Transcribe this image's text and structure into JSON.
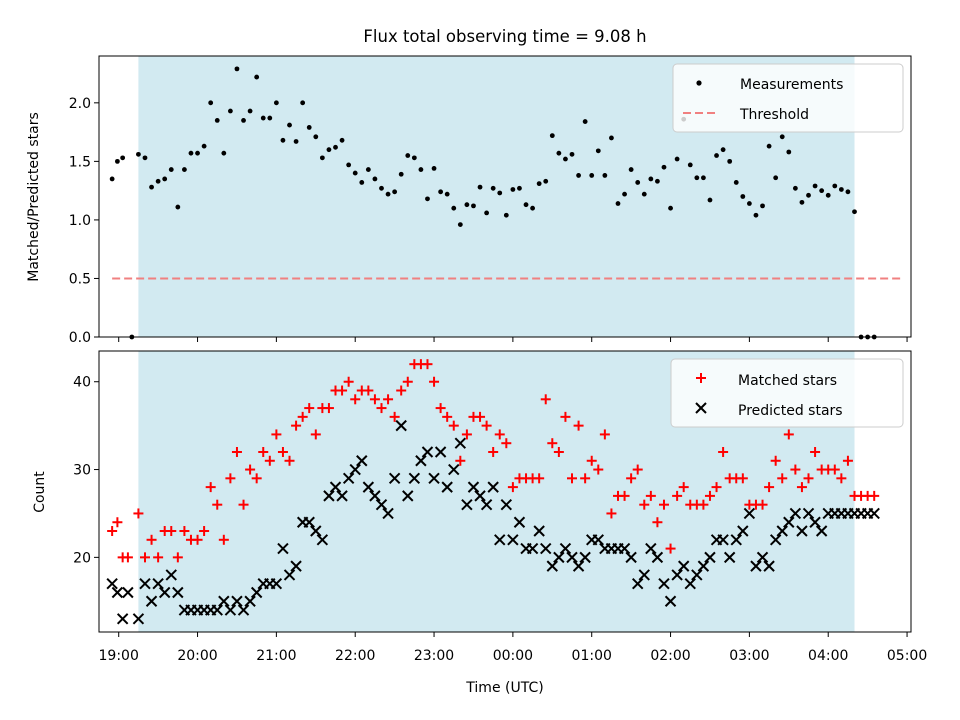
{
  "chart_data": [
    {
      "type": "scatter",
      "title": "Flux total observing time = 9.08 h",
      "xlabel": "",
      "ylabel": "Matched/Predicted stars",
      "xlim": [
        "18:45",
        "05:03"
      ],
      "ylim": [
        0,
        2.4
      ],
      "yticks": [
        0.0,
        0.5,
        1.0,
        1.5,
        2.0
      ],
      "ytick_labels": [
        "0.0",
        "0.5",
        "1.0",
        "1.5",
        "2.0"
      ],
      "shaded_span": [
        "19:15",
        "04:20"
      ],
      "shade_color": "#add8e6",
      "legend": {
        "placement": "upper right",
        "entries": [
          "Measurements",
          "Threshold"
        ]
      },
      "threshold": {
        "name": "Threshold",
        "value": 0.5,
        "x_range": [
          "18:55",
          "04:55"
        ],
        "color": "#f08080",
        "style": "dashed"
      },
      "series": [
        {
          "name": "Measurements",
          "marker": "dot",
          "color": "#000000",
          "x": [
            "18:55",
            "18:59",
            "19:03",
            "19:10",
            "19:15",
            "19:20",
            "19:25",
            "19:30",
            "19:35",
            "19:40",
            "19:45",
            "19:50",
            "19:55",
            "20:00",
            "20:05",
            "20:10",
            "20:15",
            "20:20",
            "20:25",
            "20:30",
            "20:35",
            "20:40",
            "20:45",
            "20:50",
            "20:55",
            "21:00",
            "21:05",
            "21:10",
            "21:15",
            "21:20",
            "21:25",
            "21:30",
            "21:35",
            "21:40",
            "21:45",
            "21:50",
            "21:55",
            "22:00",
            "22:05",
            "22:10",
            "22:15",
            "22:20",
            "22:25",
            "22:30",
            "22:35",
            "22:40",
            "22:45",
            "22:50",
            "22:55",
            "23:00",
            "23:05",
            "23:10",
            "23:15",
            "23:20",
            "23:25",
            "23:30",
            "23:35",
            "23:40",
            "23:45",
            "23:50",
            "23:55",
            "00:00",
            "00:05",
            "00:10",
            "00:15",
            "00:20",
            "00:25",
            "00:30",
            "00:35",
            "00:40",
            "00:45",
            "00:50",
            "00:55",
            "01:00",
            "01:05",
            "01:10",
            "01:15",
            "01:20",
            "01:25",
            "01:30",
            "01:35",
            "01:40",
            "01:45",
            "01:50",
            "01:55",
            "02:00",
            "02:05",
            "02:10",
            "02:15",
            "02:20",
            "02:25",
            "02:30",
            "02:35",
            "02:40",
            "02:45",
            "02:50",
            "02:55",
            "03:00",
            "03:05",
            "03:10",
            "03:15",
            "03:20",
            "03:25",
            "03:30",
            "03:35",
            "03:40",
            "03:45",
            "03:50",
            "03:55",
            "04:00",
            "04:05",
            "04:10",
            "04:15",
            "04:20",
            "04:25",
            "04:30",
            "04:35"
          ],
          "y": [
            1.35,
            1.5,
            1.53,
            0.0,
            1.56,
            1.53,
            1.28,
            1.33,
            1.35,
            1.43,
            1.11,
            1.43,
            1.57,
            1.57,
            1.63,
            2.0,
            1.85,
            1.57,
            1.93,
            2.29,
            1.85,
            1.93,
            2.22,
            1.87,
            1.87,
            2.0,
            1.68,
            1.81,
            1.67,
            2.0,
            1.79,
            1.71,
            1.53,
            1.6,
            1.62,
            1.68,
            1.47,
            1.4,
            1.32,
            1.43,
            1.35,
            1.27,
            1.22,
            1.24,
            1.39,
            1.55,
            1.53,
            1.43,
            1.18,
            1.44,
            1.24,
            1.22,
            1.1,
            0.96,
            1.13,
            1.12,
            1.28,
            1.06,
            1.27,
            1.23,
            1.04,
            1.26,
            1.27,
            1.13,
            1.1,
            1.31,
            1.33,
            1.72,
            1.57,
            1.52,
            1.56,
            1.38,
            1.84,
            1.38,
            1.59,
            1.38,
            1.7,
            1.14,
            1.22,
            1.43,
            1.32,
            1.22,
            1.35,
            1.33,
            1.45,
            1.1,
            1.52,
            1.86,
            1.47,
            1.36,
            1.36,
            1.17,
            1.55,
            1.6,
            1.5,
            1.32,
            1.2,
            1.14,
            1.04,
            1.12,
            1.63,
            1.36,
            1.71,
            1.58,
            1.27,
            1.15,
            1.21,
            1.29,
            1.25,
            1.21,
            1.29,
            1.26,
            1.24,
            1.07,
            0.0,
            0.0,
            0.0
          ]
        }
      ]
    },
    {
      "type": "scatter",
      "title": "",
      "xlabel": "Time (UTC)",
      "ylabel": "Count",
      "xlim": [
        "18:45",
        "05:03"
      ],
      "ylim": [
        11.5,
        43.5
      ],
      "yticks": [
        20,
        30,
        40
      ],
      "ytick_labels": [
        "20",
        "30",
        "40"
      ],
      "xticks": [
        "19:00",
        "20:00",
        "21:00",
        "22:00",
        "23:00",
        "00:00",
        "01:00",
        "02:00",
        "03:00",
        "04:00",
        "05:00"
      ],
      "xtick_labels": [
        "19:00",
        "20:00",
        "21:00",
        "22:00",
        "23:00",
        "00:00",
        "01:00",
        "02:00",
        "03:00",
        "04:00",
        "05:00"
      ],
      "shaded_span": [
        "19:15",
        "04:20"
      ],
      "shade_color": "#add8e6",
      "legend": {
        "placement": "upper right",
        "entries": [
          "Matched stars",
          "Predicted stars"
        ]
      },
      "series": [
        {
          "name": "Matched stars",
          "marker": "plus",
          "color": "#ff0000",
          "x": [
            "18:55",
            "18:59",
            "19:03",
            "19:07",
            "19:15",
            "19:20",
            "19:25",
            "19:30",
            "19:35",
            "19:40",
            "19:45",
            "19:50",
            "19:55",
            "20:00",
            "20:05",
            "20:10",
            "20:15",
            "20:20",
            "20:25",
            "20:30",
            "20:35",
            "20:40",
            "20:45",
            "20:50",
            "20:55",
            "21:00",
            "21:05",
            "21:10",
            "21:15",
            "21:20",
            "21:25",
            "21:30",
            "21:35",
            "21:40",
            "21:45",
            "21:50",
            "21:55",
            "22:00",
            "22:05",
            "22:10",
            "22:15",
            "22:20",
            "22:25",
            "22:30",
            "22:35",
            "22:40",
            "22:45",
            "22:50",
            "22:55",
            "23:00",
            "23:05",
            "23:10",
            "23:15",
            "23:20",
            "23:25",
            "23:30",
            "23:35",
            "23:40",
            "23:45",
            "23:50",
            "23:55",
            "00:00",
            "00:05",
            "00:10",
            "00:15",
            "00:20",
            "00:25",
            "00:30",
            "00:35",
            "00:40",
            "00:45",
            "00:50",
            "00:55",
            "01:00",
            "01:05",
            "01:10",
            "01:15",
            "01:20",
            "01:25",
            "01:30",
            "01:35",
            "01:40",
            "01:45",
            "01:50",
            "01:55",
            "02:00",
            "02:05",
            "02:10",
            "02:15",
            "02:20",
            "02:25",
            "02:30",
            "02:35",
            "02:40",
            "02:45",
            "02:50",
            "02:55",
            "03:00",
            "03:05",
            "03:10",
            "03:15",
            "03:20",
            "03:25",
            "03:30",
            "03:35",
            "03:40",
            "03:45",
            "03:50",
            "03:55",
            "04:00",
            "04:05",
            "04:10",
            "04:15",
            "04:20",
            "04:25",
            "04:30",
            "04:35"
          ],
          "y": [
            23,
            24,
            20,
            20,
            25,
            20,
            22,
            20,
            23,
            23,
            20,
            23,
            22,
            22,
            23,
            28,
            26,
            22,
            29,
            32,
            26,
            30,
            29,
            32,
            31,
            34,
            32,
            31,
            35,
            36,
            37,
            34,
            37,
            37,
            39,
            39,
            40,
            38,
            39,
            39,
            38,
            37,
            38,
            36,
            39,
            40,
            42,
            42,
            42,
            40,
            37,
            36,
            35,
            31,
            34,
            36,
            36,
            35,
            32,
            34,
            33,
            28,
            29,
            29,
            29,
            29,
            38,
            33,
            32,
            36,
            29,
            35,
            29,
            31,
            30,
            34,
            25,
            27,
            27,
            29,
            30,
            26,
            27,
            24,
            26,
            21,
            27,
            28,
            26,
            26,
            26,
            27,
            28,
            32,
            29,
            29,
            29,
            26,
            26,
            26,
            28,
            31,
            29,
            34,
            30,
            28,
            29,
            32,
            30,
            30,
            30,
            29,
            31,
            27,
            27,
            27,
            27
          ]
        },
        {
          "name": "Predicted stars",
          "marker": "x",
          "color": "#000000",
          "x": [
            "18:55",
            "18:59",
            "19:03",
            "19:07",
            "19:15",
            "19:20",
            "19:25",
            "19:30",
            "19:35",
            "19:40",
            "19:45",
            "19:50",
            "19:55",
            "20:00",
            "20:05",
            "20:10",
            "20:15",
            "20:20",
            "20:25",
            "20:30",
            "20:35",
            "20:40",
            "20:45",
            "20:50",
            "20:55",
            "21:00",
            "21:05",
            "21:10",
            "21:15",
            "21:20",
            "21:25",
            "21:30",
            "21:35",
            "21:40",
            "21:45",
            "21:50",
            "21:55",
            "22:00",
            "22:05",
            "22:10",
            "22:15",
            "22:20",
            "22:25",
            "22:30",
            "22:35",
            "22:40",
            "22:45",
            "22:50",
            "22:55",
            "23:00",
            "23:05",
            "23:10",
            "23:15",
            "23:20",
            "23:25",
            "23:30",
            "23:35",
            "23:40",
            "23:45",
            "23:50",
            "23:55",
            "00:00",
            "00:05",
            "00:10",
            "00:15",
            "00:20",
            "00:25",
            "00:30",
            "00:35",
            "00:40",
            "00:45",
            "00:50",
            "00:55",
            "01:00",
            "01:05",
            "01:10",
            "01:15",
            "01:20",
            "01:25",
            "01:30",
            "01:35",
            "01:40",
            "01:45",
            "01:50",
            "01:55",
            "02:00",
            "02:05",
            "02:10",
            "02:15",
            "02:20",
            "02:25",
            "02:30",
            "02:35",
            "02:40",
            "02:45",
            "02:50",
            "02:55",
            "03:00",
            "03:05",
            "03:10",
            "03:15",
            "03:20",
            "03:25",
            "03:30",
            "03:35",
            "03:40",
            "03:45",
            "03:50",
            "03:55",
            "04:00",
            "04:05",
            "04:10",
            "04:15",
            "04:20",
            "04:25",
            "04:30",
            "04:35"
          ],
          "y": [
            17,
            16,
            13,
            16,
            13,
            17,
            15,
            17,
            16,
            18,
            16,
            14,
            14,
            14,
            14,
            14,
            14,
            15,
            14,
            15,
            14,
            15,
            16,
            17,
            17,
            17,
            21,
            18,
            19,
            24,
            24,
            23,
            22,
            27,
            28,
            27,
            29,
            30,
            31,
            28,
            27,
            26,
            25,
            29,
            35,
            27,
            29,
            31,
            32,
            29,
            32,
            28,
            30,
            33,
            26,
            28,
            27,
            26,
            28,
            22,
            26,
            22,
            24,
            21,
            21,
            23,
            21,
            19,
            20,
            21,
            20,
            19,
            20,
            22,
            22,
            21,
            21,
            21,
            21,
            20,
            17,
            18,
            21,
            20,
            17,
            15,
            18,
            19,
            17,
            18,
            19,
            20,
            22,
            22,
            20,
            22,
            23,
            25,
            19,
            20,
            19,
            22,
            23,
            24,
            25,
            23,
            25,
            24,
            23,
            25,
            25,
            25,
            25,
            25,
            25,
            25,
            25
          ]
        }
      ]
    }
  ]
}
